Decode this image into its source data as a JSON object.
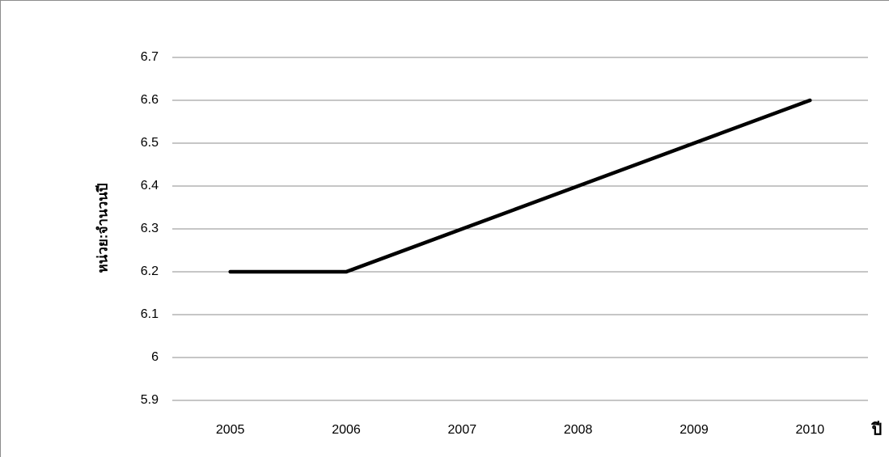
{
  "chart_data": {
    "type": "line",
    "categories": [
      "2005",
      "2006",
      "2007",
      "2008",
      "2009",
      "2010"
    ],
    "values": [
      6.2,
      6.2,
      6.3,
      6.4,
      6.5,
      6.6
    ],
    "color": "#000000",
    "ylim": [
      5.9,
      6.7
    ],
    "yticks": [
      5.9,
      6,
      6.1,
      6.2,
      6.3,
      6.4,
      6.5,
      6.6,
      6.7
    ],
    "grid": true,
    "y_label": "หน่วย:จำนวนปี",
    "x_label": "ปี"
  }
}
